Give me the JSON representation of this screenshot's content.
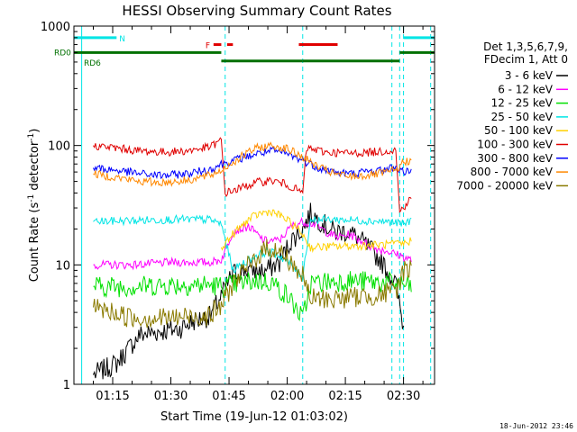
{
  "chart_data": {
    "type": "line",
    "title": "HESSI Observing Summary Count Rates",
    "xlabel": "Start Time (19-Jun-12 01:03:02)",
    "ylabel_main": "Count Rate (s",
    "ylabel_sup1": "-1",
    "ylabel_mid": " detector",
    "ylabel_sup2": "-1",
    "ylabel_end": ")",
    "yscale": "log",
    "ylim": [
      1,
      1000
    ],
    "xlim_min": [
      65,
      158
    ],
    "x_ticks": [
      {
        "min": 75,
        "label": "01:15"
      },
      {
        "min": 90,
        "label": "01:30"
      },
      {
        "min": 105,
        "label": "01:45"
      },
      {
        "min": 120,
        "label": "02:00"
      },
      {
        "min": 135,
        "label": "02:15"
      },
      {
        "min": 150,
        "label": "02:30"
      }
    ],
    "y_ticks": [
      {
        "v": 1,
        "label": "1"
      },
      {
        "v": 10,
        "label": "10"
      },
      {
        "v": 100,
        "label": "100"
      },
      {
        "v": 1000,
        "label": "1000"
      }
    ],
    "legend_header": [
      "Det 1,3,5,6,7,9,",
      "FDecim 1, Att 0"
    ],
    "legend_placement": "right",
    "footer_date": "18-Jun-2012 23:46",
    "flags": {
      "N": {
        "label": "N",
        "color": "#00e5e5",
        "value": 800,
        "segments": [
          [
            65,
            76
          ],
          [
            150,
            158
          ]
        ]
      },
      "F": {
        "label": "F",
        "color": "#e00000",
        "value": 700,
        "segments": [
          [
            101,
            103
          ],
          [
            104.5,
            106
          ],
          [
            123,
            133
          ]
        ]
      },
      "RD0": {
        "label": "RD0",
        "color": "#007000",
        "value": 600,
        "segments": [
          [
            65,
            103
          ],
          [
            149,
            158
          ]
        ]
      },
      "RD6": {
        "label": "RD6",
        "color": "#007000",
        "value": 510,
        "segments": [
          [
            103,
            124
          ],
          [
            124,
            149
          ]
        ]
      }
    },
    "orbit_night": [
      [
        67,
        104
      ],
      [
        124,
        147
      ],
      [
        149,
        150
      ],
      [
        157,
        159
      ]
    ],
    "series": [
      {
        "name": "3 - 6 keV",
        "color": "#000000",
        "points": [
          [
            70,
            1.2
          ],
          [
            76,
            1.5
          ],
          [
            82,
            2.6
          ],
          [
            88,
            2.8
          ],
          [
            92,
            2.9
          ],
          [
            96,
            3.4
          ],
          [
            100,
            3.7
          ],
          [
            103,
            5.5
          ],
          [
            106,
            8.5
          ],
          [
            110,
            9.2
          ],
          [
            114,
            8.8
          ],
          [
            118,
            10.5
          ],
          [
            121,
            16
          ],
          [
            124,
            20
          ],
          [
            126,
            27
          ],
          [
            128,
            24
          ],
          [
            132,
            19
          ],
          [
            136,
            19
          ],
          [
            140,
            15
          ],
          [
            144,
            11
          ],
          [
            148,
            7
          ],
          [
            150,
            3
          ]
        ]
      },
      {
        "name": "6 - 12 keV",
        "color": "#ff00ff",
        "points": [
          [
            70,
            10
          ],
          [
            80,
            10
          ],
          [
            90,
            10.5
          ],
          [
            100,
            10.5
          ],
          [
            103,
            11
          ],
          [
            106,
            19
          ],
          [
            110,
            21
          ],
          [
            114,
            16
          ],
          [
            118,
            16
          ],
          [
            121,
            21
          ],
          [
            124,
            23
          ],
          [
            127,
            22
          ],
          [
            130,
            19
          ],
          [
            133,
            17
          ],
          [
            136,
            18
          ],
          [
            139,
            16
          ],
          [
            142,
            14
          ],
          [
            146,
            13
          ],
          [
            149,
            12
          ],
          [
            152,
            11
          ]
        ]
      },
      {
        "name": "12 - 25 keV",
        "color": "#00e000",
        "points": [
          [
            70,
            6.6
          ],
          [
            80,
            6.6
          ],
          [
            90,
            6.8
          ],
          [
            100,
            6.8
          ],
          [
            103,
            6.6
          ],
          [
            108,
            7
          ],
          [
            112,
            7.4
          ],
          [
            116,
            7.2
          ],
          [
            120,
            5.5
          ],
          [
            122,
            4.5
          ],
          [
            124,
            3.5
          ],
          [
            126,
            7
          ],
          [
            130,
            7.2
          ],
          [
            136,
            7.4
          ],
          [
            142,
            7.2
          ],
          [
            148,
            7
          ],
          [
            152,
            6.6
          ]
        ]
      },
      {
        "name": "25 - 50 keV",
        "color": "#00e5e5",
        "points": [
          [
            70,
            23
          ],
          [
            80,
            23.5
          ],
          [
            90,
            24
          ],
          [
            100,
            24
          ],
          [
            103,
            22
          ],
          [
            106,
            9
          ],
          [
            109,
            10.5
          ],
          [
            112,
            12
          ],
          [
            115,
            13
          ],
          [
            118,
            12
          ],
          [
            121,
            10
          ],
          [
            124,
            8
          ],
          [
            126,
            24
          ],
          [
            132,
            24
          ],
          [
            140,
            23.5
          ],
          [
            146,
            23
          ],
          [
            150,
            22
          ],
          [
            152,
            23.5
          ]
        ]
      },
      {
        "name": "50 - 100 keV",
        "color": "#ffd000",
        "points": [
          [
            103,
            14
          ],
          [
            106,
            18
          ],
          [
            110,
            24
          ],
          [
            113,
            27
          ],
          [
            116,
            28
          ],
          [
            119,
            25
          ],
          [
            122,
            21
          ],
          [
            124,
            18
          ],
          [
            126,
            14
          ],
          [
            150,
            15
          ],
          [
            152,
            16
          ]
        ]
      },
      {
        "name": "100 - 300 keV",
        "color": "#e00000",
        "points": [
          [
            70,
            100
          ],
          [
            76,
            95
          ],
          [
            82,
            90
          ],
          [
            88,
            88
          ],
          [
            94,
            90
          ],
          [
            100,
            97
          ],
          [
            103,
            110
          ],
          [
            104,
            40
          ],
          [
            108,
            44
          ],
          [
            112,
            49
          ],
          [
            116,
            51
          ],
          [
            120,
            47
          ],
          [
            124,
            40
          ],
          [
            125,
            95
          ],
          [
            130,
            88
          ],
          [
            136,
            86
          ],
          [
            142,
            88
          ],
          [
            148,
            92
          ],
          [
            149,
            28
          ],
          [
            152,
            36
          ]
        ]
      },
      {
        "name": "300 - 800 keV",
        "color": "#0000ff",
        "points": [
          [
            70,
            65
          ],
          [
            76,
            62
          ],
          [
            82,
            58
          ],
          [
            88,
            56
          ],
          [
            94,
            58
          ],
          [
            100,
            63
          ],
          [
            103,
            70
          ],
          [
            108,
            78
          ],
          [
            112,
            85
          ],
          [
            116,
            90
          ],
          [
            120,
            85
          ],
          [
            124,
            75
          ],
          [
            128,
            65
          ],
          [
            132,
            60
          ],
          [
            136,
            58
          ],
          [
            140,
            60
          ],
          [
            144,
            62
          ],
          [
            148,
            66
          ],
          [
            150,
            60
          ],
          [
            152,
            63
          ]
        ]
      },
      {
        "name": "800 - 7000 keV",
        "color": "#ff8800",
        "points": [
          [
            70,
            58
          ],
          [
            76,
            54
          ],
          [
            82,
            50
          ],
          [
            88,
            49
          ],
          [
            94,
            51
          ],
          [
            100,
            56
          ],
          [
            103,
            62
          ],
          [
            108,
            80
          ],
          [
            112,
            95
          ],
          [
            116,
            100
          ],
          [
            120,
            94
          ],
          [
            124,
            80
          ],
          [
            128,
            66
          ],
          [
            132,
            58
          ],
          [
            136,
            55
          ],
          [
            140,
            56
          ],
          [
            144,
            58
          ],
          [
            148,
            62
          ],
          [
            150,
            72
          ],
          [
            152,
            76
          ]
        ]
      },
      {
        "name": "7000 - 20000 keV",
        "color": "#8a7a00",
        "points": [
          [
            70,
            4.4
          ],
          [
            80,
            3.6
          ],
          [
            90,
            3.6
          ],
          [
            100,
            3.8
          ],
          [
            103,
            4.5
          ],
          [
            106,
            7
          ],
          [
            109,
            9
          ],
          [
            112,
            11.5
          ],
          [
            115,
            14
          ],
          [
            118,
            13
          ],
          [
            121,
            10.5
          ],
          [
            124,
            8
          ],
          [
            126,
            5.2
          ],
          [
            132,
            5.2
          ],
          [
            138,
            5.4
          ],
          [
            144,
            5.6
          ],
          [
            148,
            6
          ],
          [
            150,
            9
          ],
          [
            152,
            9.5
          ]
        ]
      }
    ]
  }
}
